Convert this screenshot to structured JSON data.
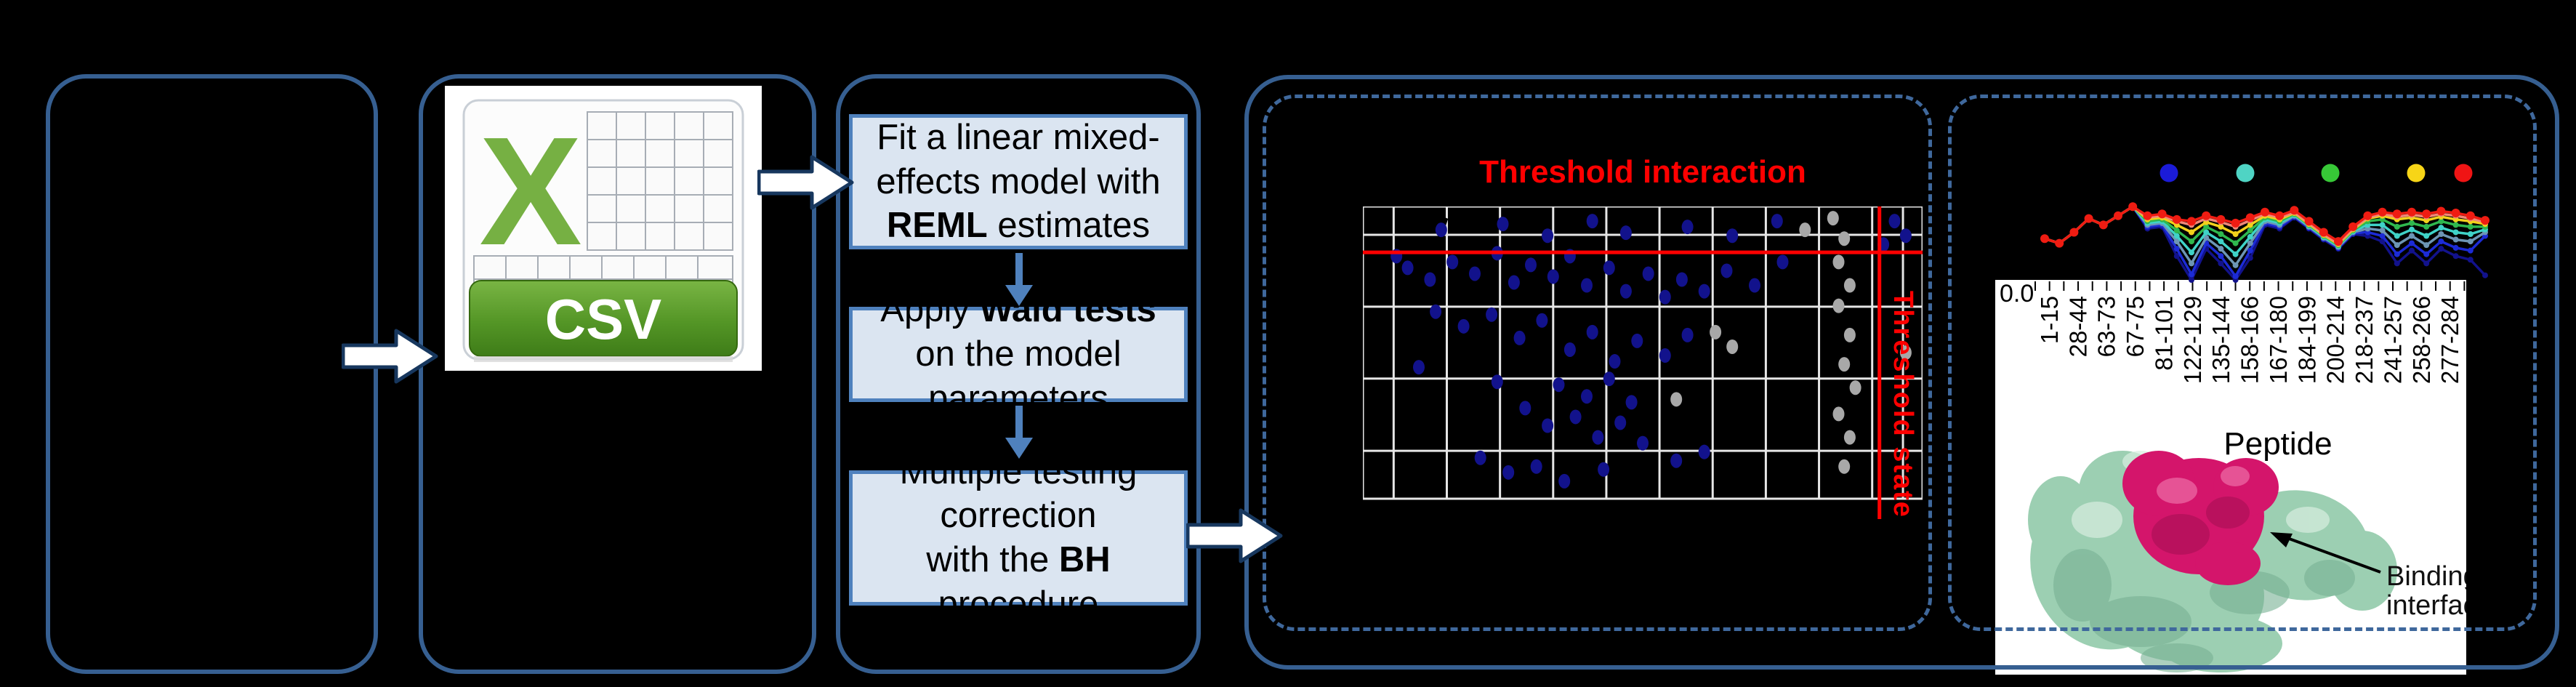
{
  "ui": {
    "background": "#000000",
    "panel_border_color": "#365f91",
    "dashed_border_color": "#3f689c",
    "arrow_fill": "#ffffff",
    "arrow_outline": "#17375e",
    "flow_arrow_color": "#4f81bd",
    "flow_box_fill": "#dbe5f1",
    "flow_box_border": "#4f81bd",
    "flow": {
      "box1": {
        "pre": "Fit a linear mixed-effects model with ",
        "bold": "REML",
        "post": " estimates"
      },
      "box2": {
        "pre": "Apply ",
        "bold": "Wald tests",
        "post": " on the model parameters"
      },
      "box3": {
        "line1": "Multiple testing correction",
        "pre": "with the ",
        "bold": "BH",
        "post": " procedure"
      }
    },
    "csv_icon": {
      "letter": "X",
      "label": "CSV",
      "letter_color": "#76b043",
      "banner_top": "#79b544",
      "banner_bottom": "#3e7c18"
    },
    "scatter_panel": {
      "title": "Threshold interaction",
      "title_color": "#ff0000",
      "side_label": "Threshold state",
      "side_label_color": "#ff0000"
    },
    "uptake_panel": {
      "ytick_label": "0.0",
      "xlabel": "Peptide",
      "annotation_line1": "Binding",
      "annotation_line2": "interface"
    }
  },
  "chart_data": [
    {
      "type": "scatter",
      "title": "Threshold interaction",
      "threshold_h_label": "Threshold interaction",
      "threshold_v_label": "Threshold state",
      "background": "#000000",
      "grid": true,
      "gridline_fractions": {
        "v": [
          0,
          0.055,
          0.15,
          0.245,
          0.34,
          0.435,
          0.53,
          0.625,
          0.72,
          0.815,
          0.91,
          0.965,
          1
        ],
        "h": [
          0,
          0.097,
          0.343,
          0.589,
          0.836,
          1
        ]
      },
      "red_hline_fraction": 0.157,
      "red_vline_fraction": 0.923,
      "point_series": [
        {
          "name": "blue-points",
          "color": "#12128c",
          "points": [
            [
              14,
              8
            ],
            [
              25,
              6
            ],
            [
              33,
              10
            ],
            [
              41,
              5
            ],
            [
              47,
              9
            ],
            [
              58,
              7
            ],
            [
              66,
              10
            ],
            [
              74,
              5
            ],
            [
              95,
              5
            ],
            [
              97,
              10
            ],
            [
              93,
              13
            ],
            [
              6,
              17
            ],
            [
              8,
              21
            ],
            [
              12,
              25
            ],
            [
              16,
              19
            ],
            [
              20,
              23
            ],
            [
              24,
              16
            ],
            [
              27,
              26
            ],
            [
              30,
              20
            ],
            [
              34,
              24
            ],
            [
              37,
              17
            ],
            [
              40,
              27
            ],
            [
              44,
              21
            ],
            [
              47,
              29
            ],
            [
              51,
              23
            ],
            [
              54,
              31
            ],
            [
              57,
              25
            ],
            [
              61,
              29
            ],
            [
              65,
              22
            ],
            [
              70,
              27
            ],
            [
              75,
              19
            ],
            [
              13,
              36
            ],
            [
              18,
              41
            ],
            [
              23,
              37
            ],
            [
              28,
              45
            ],
            [
              32,
              39
            ],
            [
              37,
              49
            ],
            [
              41,
              43
            ],
            [
              45,
              53
            ],
            [
              49,
              46
            ],
            [
              54,
              51
            ],
            [
              58,
              44
            ],
            [
              35,
              61
            ],
            [
              40,
              65
            ],
            [
              44,
              59
            ],
            [
              48,
              67
            ],
            [
              29,
              69
            ],
            [
              33,
              75
            ],
            [
              38,
              72
            ],
            [
              42,
              79
            ],
            [
              46,
              74
            ],
            [
              50,
              81
            ],
            [
              21,
              86
            ],
            [
              26,
              91
            ],
            [
              31,
              89
            ],
            [
              36,
              94
            ],
            [
              43,
              90
            ],
            [
              56,
              87
            ],
            [
              61,
              84
            ],
            [
              24,
              60
            ],
            [
              10,
              55
            ]
          ]
        },
        {
          "name": "gray-points",
          "color": "#a8a8a8",
          "points": [
            [
              84,
              4
            ],
            [
              86,
              11
            ],
            [
              85,
              19
            ],
            [
              87,
              27
            ],
            [
              85,
              34
            ],
            [
              87,
              44
            ],
            [
              86,
              54
            ],
            [
              88,
              62
            ],
            [
              85,
              71
            ],
            [
              87,
              79
            ],
            [
              86,
              89
            ],
            [
              63,
              43
            ],
            [
              66,
              48
            ],
            [
              56,
              66
            ],
            [
              97,
              50
            ],
            [
              79,
              8
            ]
          ]
        }
      ]
    },
    {
      "type": "line",
      "xlabel": "Peptide",
      "ytick_labels": [
        "0.0"
      ],
      "categories": [
        "1-15",
        "28-44",
        "63-73",
        "67-75",
        "81-101",
        "122-129",
        "135-144",
        "158-166",
        "167-180",
        "184-199",
        "200-214",
        "218-237",
        "241-257",
        "258-266",
        "277-284"
      ],
      "legend_dot_colors": [
        "#1b1bd8",
        "#4fd4c4",
        "#37c837",
        "#f7d517",
        "#f01414"
      ],
      "series": [
        {
          "name": "navy",
          "color": "#12128c",
          "values": [
            0.55,
            0.6,
            0.48,
            0.33,
            0.4,
            0.3,
            0.2,
            0.44,
            0.42,
            0.74,
            1.0,
            0.66,
            0.82,
            1.0,
            0.76,
            0.4,
            0.44,
            0.32,
            0.44,
            0.56,
            0.66,
            0.5,
            0.52,
            0.58,
            0.82,
            0.68,
            0.82,
            0.66,
            0.74,
            0.78,
            0.95
          ]
        },
        {
          "name": "blue",
          "color": "#1c2bd6",
          "values": [
            0.55,
            0.6,
            0.48,
            0.33,
            0.4,
            0.3,
            0.2,
            0.42,
            0.4,
            0.66,
            0.94,
            0.6,
            0.74,
            0.96,
            0.68,
            0.38,
            0.42,
            0.31,
            0.43,
            0.55,
            0.65,
            0.49,
            0.48,
            0.52,
            0.72,
            0.6,
            0.72,
            0.58,
            0.65,
            0.68,
            0.52
          ]
        },
        {
          "name": "steel",
          "color": "#6d95b5",
          "values": [
            0.55,
            0.6,
            0.48,
            0.33,
            0.4,
            0.3,
            0.2,
            0.4,
            0.38,
            0.58,
            0.82,
            0.54,
            0.66,
            0.84,
            0.6,
            0.36,
            0.4,
            0.3,
            0.42,
            0.54,
            0.64,
            0.48,
            0.44,
            0.46,
            0.62,
            0.52,
            0.62,
            0.5,
            0.56,
            0.58,
            0.48
          ]
        },
        {
          "name": "turquoise",
          "color": "#3fd2c7",
          "values": [
            0.55,
            0.6,
            0.48,
            0.33,
            0.4,
            0.3,
            0.2,
            0.38,
            0.36,
            0.52,
            0.7,
            0.48,
            0.58,
            0.72,
            0.53,
            0.34,
            0.38,
            0.29,
            0.41,
            0.53,
            0.63,
            0.47,
            0.4,
            0.4,
            0.52,
            0.45,
            0.52,
            0.43,
            0.48,
            0.5,
            0.45
          ]
        },
        {
          "name": "green",
          "color": "#2fb84e",
          "values": [
            0.55,
            0.6,
            0.48,
            0.33,
            0.4,
            0.3,
            0.2,
            0.36,
            0.34,
            0.46,
            0.58,
            0.42,
            0.5,
            0.6,
            0.46,
            0.32,
            0.36,
            0.28,
            0.4,
            0.52,
            0.62,
            0.46,
            0.36,
            0.34,
            0.42,
            0.38,
            0.42,
            0.36,
            0.4,
            0.42,
            0.42
          ]
        },
        {
          "name": "yellow",
          "color": "#f2d11b",
          "values": [
            0.55,
            0.6,
            0.48,
            0.33,
            0.4,
            0.3,
            0.2,
            0.34,
            0.32,
            0.4,
            0.48,
            0.37,
            0.42,
            0.5,
            0.4,
            0.3,
            0.34,
            0.27,
            0.39,
            0.51,
            0.61,
            0.45,
            0.33,
            0.3,
            0.34,
            0.32,
            0.35,
            0.31,
            0.34,
            0.36,
            0.39
          ]
        },
        {
          "name": "salmon",
          "color": "#f08878",
          "values": [
            0.55,
            0.6,
            0.48,
            0.33,
            0.4,
            0.3,
            0.2,
            0.32,
            0.3,
            0.36,
            0.4,
            0.33,
            0.37,
            0.42,
            0.35,
            0.28,
            0.32,
            0.26,
            0.38,
            0.5,
            0.6,
            0.44,
            0.32,
            0.28,
            0.31,
            0.29,
            0.31,
            0.28,
            0.3,
            0.33,
            0.37
          ]
        },
        {
          "name": "red",
          "color": "#ef1c12",
          "values": [
            0.55,
            0.6,
            0.48,
            0.33,
            0.4,
            0.3,
            0.2,
            0.3,
            0.28,
            0.34,
            0.36,
            0.3,
            0.34,
            0.38,
            0.32,
            0.26,
            0.3,
            0.24,
            0.36,
            0.48,
            0.58,
            0.42,
            0.3,
            0.26,
            0.28,
            0.26,
            0.28,
            0.25,
            0.27,
            0.3,
            0.35
          ]
        }
      ]
    }
  ]
}
